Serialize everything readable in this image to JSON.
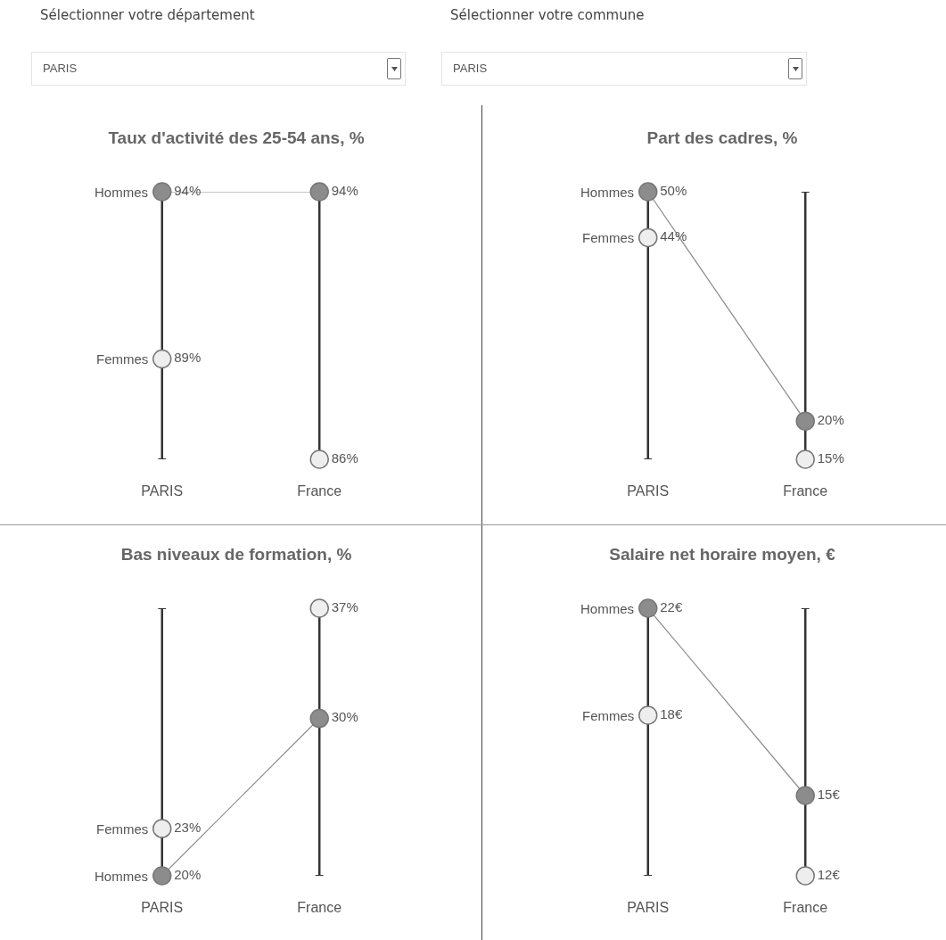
{
  "chart_data": [
    {
      "type": "other",
      "annotations": [
        "Sélectionner votre département",
        "PARIS",
        "Sélectionner votre commune",
        "PARIS"
      ]
    },
    {
      "type": "scatter",
      "title": "Taux d'activité des 25-54 ans, %",
      "categories": [
        "PARIS",
        "France"
      ],
      "ylim": [
        86,
        94
      ],
      "tick_labels": "x",
      "marker": "circle",
      "series": [
        {
          "name": "Hommes",
          "type": "line",
          "color": "#8c8c8c",
          "values": [
            94,
            94
          ],
          "value_labels": [
            "94%",
            "94%"
          ]
        },
        {
          "name": "Femmes",
          "color": "#eeeeee",
          "values": [
            89,
            86
          ],
          "value_labels": [
            "89%",
            "86%"
          ]
        }
      ]
    },
    {
      "type": "scatter",
      "title": "Part des cadres, %",
      "categories": [
        "PARIS",
        "France"
      ],
      "ylim": [
        15,
        50
      ],
      "tick_labels": "x",
      "marker": "circle",
      "series": [
        {
          "name": "Hommes",
          "type": "line",
          "color": "#8c8c8c",
          "values": [
            50,
            20
          ],
          "value_labels": [
            "50%",
            "20%"
          ]
        },
        {
          "name": "Femmes",
          "color": "#eeeeee",
          "values": [
            44,
            15
          ],
          "value_labels": [
            "44%",
            "15%"
          ]
        }
      ]
    },
    {
      "type": "scatter",
      "title": "Bas niveaux de formation, %",
      "categories": [
        "PARIS",
        "France"
      ],
      "ylim": [
        20,
        37
      ],
      "tick_labels": "x",
      "marker": "circle",
      "series": [
        {
          "name": "Hommes",
          "type": "line",
          "color": "#8c8c8c",
          "values": [
            20,
            30
          ],
          "value_labels": [
            "20%",
            "30%"
          ]
        },
        {
          "name": "Femmes",
          "color": "#eeeeee",
          "values": [
            23,
            37
          ],
          "value_labels": [
            "23%",
            "37%"
          ]
        }
      ]
    },
    {
      "type": "scatter",
      "title": "Salaire net horaire moyen, €",
      "categories": [
        "PARIS",
        "France"
      ],
      "ylim": [
        12,
        22
      ],
      "tick_labels": "x",
      "marker": "circle",
      "series": [
        {
          "name": "Hommes",
          "type": "line",
          "color": "#8c8c8c",
          "values": [
            22,
            15
          ],
          "value_labels": [
            "22€",
            "15€"
          ]
        },
        {
          "name": "Femmes",
          "color": "#eeeeee",
          "values": [
            18,
            12
          ],
          "value_labels": [
            "18€",
            "12€"
          ]
        }
      ]
    }
  ]
}
